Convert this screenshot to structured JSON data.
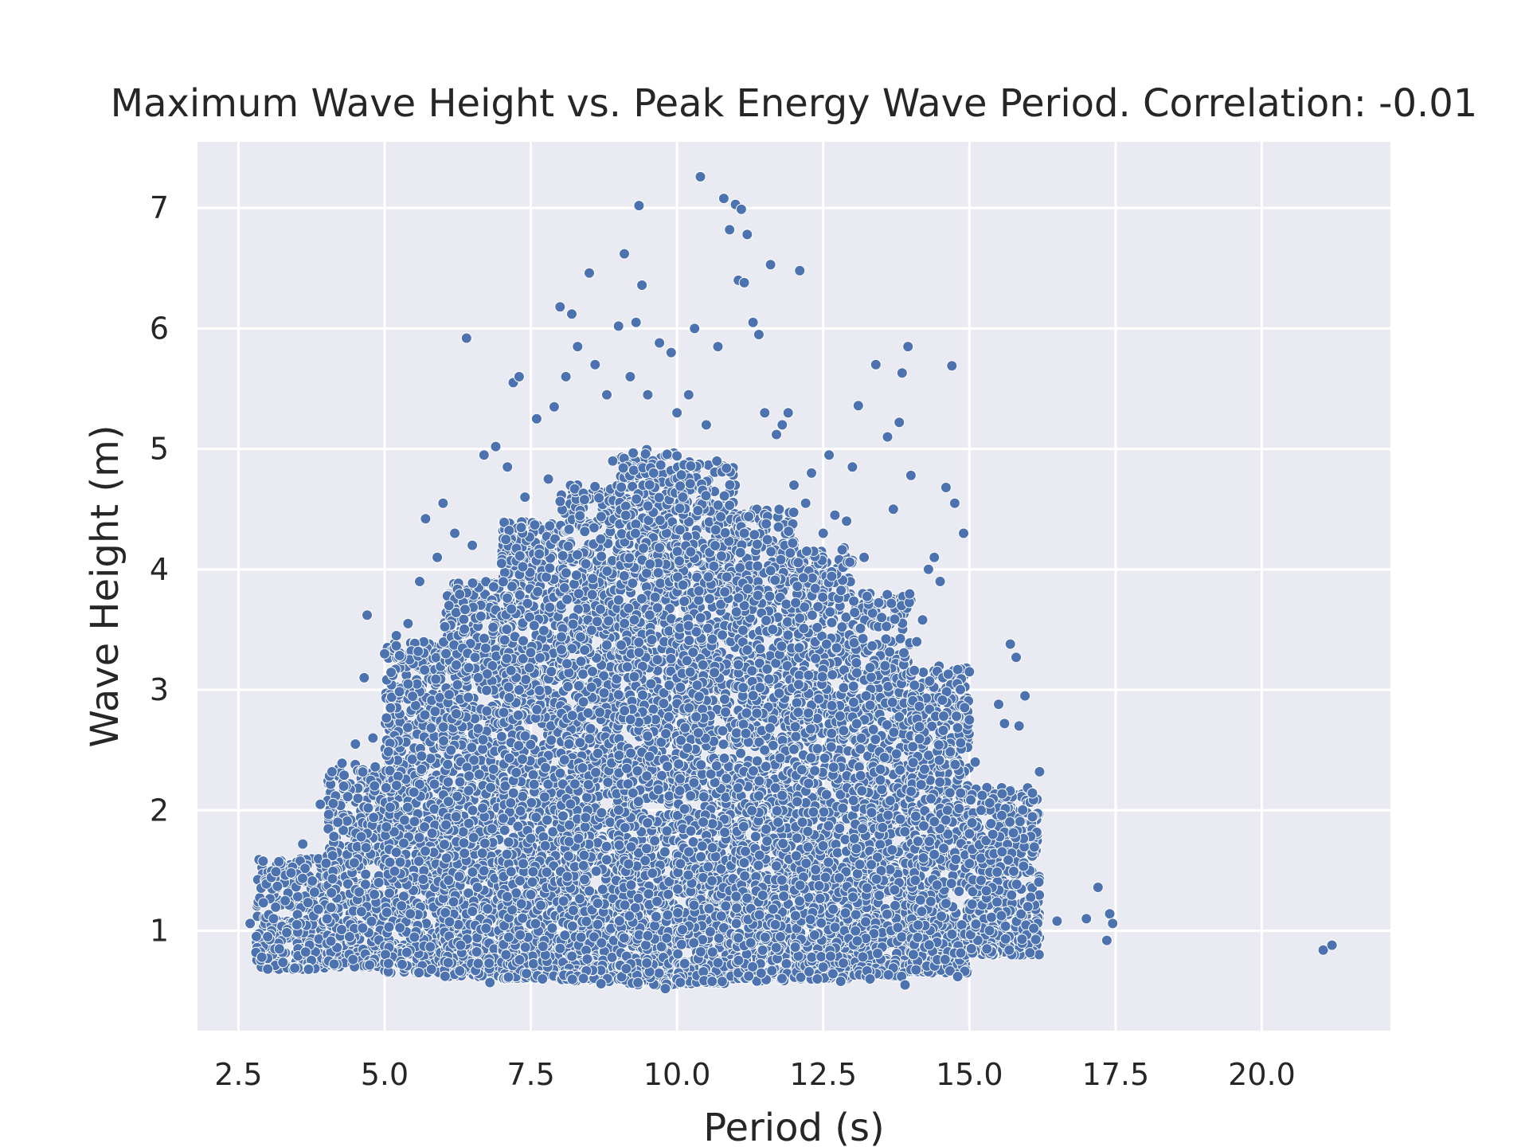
{
  "chart_data": {
    "type": "scatter",
    "title": "Maximum Wave Height vs. Peak Energy Wave Period. Correlation: -0.01",
    "xlabel": "Period (s)",
    "ylabel": "Wave Height (m)",
    "xlim": [
      1.8,
      22.2
    ],
    "ylim": [
      0.17,
      7.55
    ],
    "xticks": [
      2.5,
      5.0,
      7.5,
      10.0,
      12.5,
      15.0,
      17.5,
      20.0
    ],
    "xtick_labels": [
      "2.5",
      "5.0",
      "7.5",
      "10.0",
      "12.5",
      "15.0",
      "17.5",
      "20.0"
    ],
    "yticks": [
      1,
      2,
      3,
      4,
      5,
      6,
      7
    ],
    "ytick_labels": [
      "1",
      "2",
      "3",
      "4",
      "5",
      "6",
      "7"
    ],
    "grid": true,
    "marker_color": "#4c72b0",
    "background_color": "#eaeaf2",
    "series": [
      {
        "points": [
          [
            2.7,
            1.06
          ],
          [
            2.8,
            0.82
          ],
          [
            2.9,
            0.78
          ],
          [
            3.0,
            0.95
          ],
          [
            3.1,
            1.1
          ],
          [
            3.2,
            0.85
          ],
          [
            3.3,
            1.25
          ],
          [
            3.4,
            1.48
          ],
          [
            3.5,
            1.05
          ],
          [
            3.6,
            1.72
          ],
          [
            3.7,
            0.68
          ],
          [
            3.8,
            1.32
          ],
          [
            3.9,
            2.05
          ],
          [
            4.0,
            1.56
          ],
          [
            4.1,
            2.32
          ],
          [
            4.2,
            1.9
          ],
          [
            4.3,
            2.2
          ],
          [
            4.4,
            0.95
          ],
          [
            4.5,
            2.55
          ],
          [
            4.6,
            1.78
          ],
          [
            4.65,
            3.1
          ],
          [
            4.7,
            3.62
          ],
          [
            4.8,
            2.6
          ],
          [
            4.9,
            1.4
          ],
          [
            5.0,
            3.3
          ],
          [
            5.1,
            2.85
          ],
          [
            5.2,
            3.45
          ],
          [
            5.3,
            0.72
          ],
          [
            5.4,
            3.55
          ],
          [
            5.5,
            2.15
          ],
          [
            5.6,
            3.9
          ],
          [
            5.7,
            4.42
          ],
          [
            5.8,
            0.68
          ],
          [
            5.9,
            4.1
          ],
          [
            6.0,
            4.55
          ],
          [
            6.1,
            3.7
          ],
          [
            6.2,
            4.3
          ],
          [
            6.3,
            0.88
          ],
          [
            6.4,
            5.92
          ],
          [
            6.5,
            4.2
          ],
          [
            6.6,
            3.1
          ],
          [
            6.7,
            4.95
          ],
          [
            6.8,
            0.57
          ],
          [
            6.9,
            5.02
          ],
          [
            7.0,
            4.05
          ],
          [
            7.1,
            4.85
          ],
          [
            7.2,
            5.55
          ],
          [
            7.3,
            5.6
          ],
          [
            7.4,
            4.6
          ],
          [
            7.5,
            1.3
          ],
          [
            7.6,
            5.25
          ],
          [
            7.7,
            0.6
          ],
          [
            7.8,
            4.75
          ],
          [
            7.9,
            5.35
          ],
          [
            8.0,
            6.18
          ],
          [
            8.1,
            5.6
          ],
          [
            8.2,
            6.12
          ],
          [
            8.3,
            5.85
          ],
          [
            8.4,
            2.9
          ],
          [
            8.5,
            6.46
          ],
          [
            8.6,
            5.7
          ],
          [
            8.7,
            0.56
          ],
          [
            8.8,
            5.45
          ],
          [
            8.9,
            4.9
          ],
          [
            9.0,
            6.02
          ],
          [
            9.1,
            6.62
          ],
          [
            9.2,
            5.6
          ],
          [
            9.3,
            6.05
          ],
          [
            9.35,
            7.02
          ],
          [
            9.4,
            6.36
          ],
          [
            9.5,
            5.45
          ],
          [
            9.6,
            4.8
          ],
          [
            9.7,
            5.88
          ],
          [
            9.8,
            0.52
          ],
          [
            9.9,
            5.8
          ],
          [
            10.0,
            5.3
          ],
          [
            10.1,
            4.6
          ],
          [
            10.2,
            5.45
          ],
          [
            10.3,
            6.0
          ],
          [
            10.4,
            7.26
          ],
          [
            10.5,
            5.2
          ],
          [
            10.6,
            0.58
          ],
          [
            10.7,
            5.85
          ],
          [
            10.8,
            7.08
          ],
          [
            10.9,
            6.82
          ],
          [
            11.0,
            7.03
          ],
          [
            11.05,
            6.4
          ],
          [
            11.1,
            6.99
          ],
          [
            11.15,
            6.38
          ],
          [
            11.2,
            6.78
          ],
          [
            11.3,
            6.05
          ],
          [
            11.4,
            5.95
          ],
          [
            11.5,
            5.3
          ],
          [
            11.6,
            6.53
          ],
          [
            11.7,
            5.12
          ],
          [
            11.8,
            5.2
          ],
          [
            11.9,
            5.3
          ],
          [
            12.0,
            4.7
          ],
          [
            12.1,
            6.48
          ],
          [
            12.2,
            4.55
          ],
          [
            12.3,
            4.8
          ],
          [
            12.4,
            0.6
          ],
          [
            12.5,
            4.3
          ],
          [
            12.6,
            4.95
          ],
          [
            12.7,
            4.45
          ],
          [
            12.8,
            0.58
          ],
          [
            12.9,
            4.4
          ],
          [
            13.0,
            4.85
          ],
          [
            13.1,
            5.36
          ],
          [
            13.2,
            4.1
          ],
          [
            13.3,
            0.6
          ],
          [
            13.4,
            5.7
          ],
          [
            13.5,
            3.6
          ],
          [
            13.6,
            5.1
          ],
          [
            13.7,
            4.5
          ],
          [
            13.8,
            5.22
          ],
          [
            13.85,
            5.63
          ],
          [
            13.9,
            0.55
          ],
          [
            13.95,
            5.85
          ],
          [
            14.0,
            4.78
          ],
          [
            14.1,
            3.4
          ],
          [
            14.2,
            3.58
          ],
          [
            14.3,
            4.0
          ],
          [
            14.4,
            4.1
          ],
          [
            14.5,
            3.9
          ],
          [
            14.6,
            4.68
          ],
          [
            14.7,
            5.69
          ],
          [
            14.75,
            4.55
          ],
          [
            14.8,
            0.62
          ],
          [
            14.9,
            4.3
          ],
          [
            15.0,
            3.15
          ],
          [
            15.1,
            2.4
          ],
          [
            15.2,
            2.0
          ],
          [
            15.3,
            0.85
          ],
          [
            15.4,
            1.8
          ],
          [
            15.5,
            2.88
          ],
          [
            15.6,
            2.72
          ],
          [
            15.7,
            3.38
          ],
          [
            15.8,
            3.27
          ],
          [
            15.85,
            2.7
          ],
          [
            15.9,
            0.93
          ],
          [
            15.95,
            2.95
          ],
          [
            16.0,
            1.2
          ],
          [
            16.1,
            1.02
          ],
          [
            16.2,
            2.32
          ],
          [
            16.5,
            1.08
          ],
          [
            17.0,
            1.1
          ],
          [
            17.2,
            1.36
          ],
          [
            17.35,
            0.92
          ],
          [
            17.4,
            1.14
          ],
          [
            17.45,
            1.06
          ],
          [
            21.05,
            0.84
          ],
          [
            21.2,
            0.88
          ]
        ],
        "density_bands": [
          {
            "x_from": 2.8,
            "x_to": 4.0,
            "y_low": 0.68,
            "y_high": 1.6
          },
          {
            "x_from": 4.0,
            "x_to": 5.0,
            "y_low": 0.7,
            "y_high": 2.4
          },
          {
            "x_from": 5.0,
            "x_to": 6.0,
            "y_low": 0.65,
            "y_high": 3.4
          },
          {
            "x_from": 6.0,
            "x_to": 7.0,
            "y_low": 0.62,
            "y_high": 3.9
          },
          {
            "x_from": 7.0,
            "x_to": 8.0,
            "y_low": 0.6,
            "y_high": 4.4
          },
          {
            "x_from": 8.0,
            "x_to": 9.0,
            "y_low": 0.58,
            "y_high": 4.7
          },
          {
            "x_from": 9.0,
            "x_to": 10.0,
            "y_low": 0.55,
            "y_high": 5.0
          },
          {
            "x_from": 10.0,
            "x_to": 11.0,
            "y_low": 0.56,
            "y_high": 4.9
          },
          {
            "x_from": 11.0,
            "x_to": 12.0,
            "y_low": 0.58,
            "y_high": 4.5
          },
          {
            "x_from": 12.0,
            "x_to": 13.0,
            "y_low": 0.6,
            "y_high": 4.2
          },
          {
            "x_from": 13.0,
            "x_to": 14.0,
            "y_low": 0.62,
            "y_high": 3.8
          },
          {
            "x_from": 14.0,
            "x_to": 15.0,
            "y_low": 0.65,
            "y_high": 3.2
          },
          {
            "x_from": 15.0,
            "x_to": 16.2,
            "y_low": 0.8,
            "y_high": 2.2
          }
        ]
      }
    ]
  }
}
